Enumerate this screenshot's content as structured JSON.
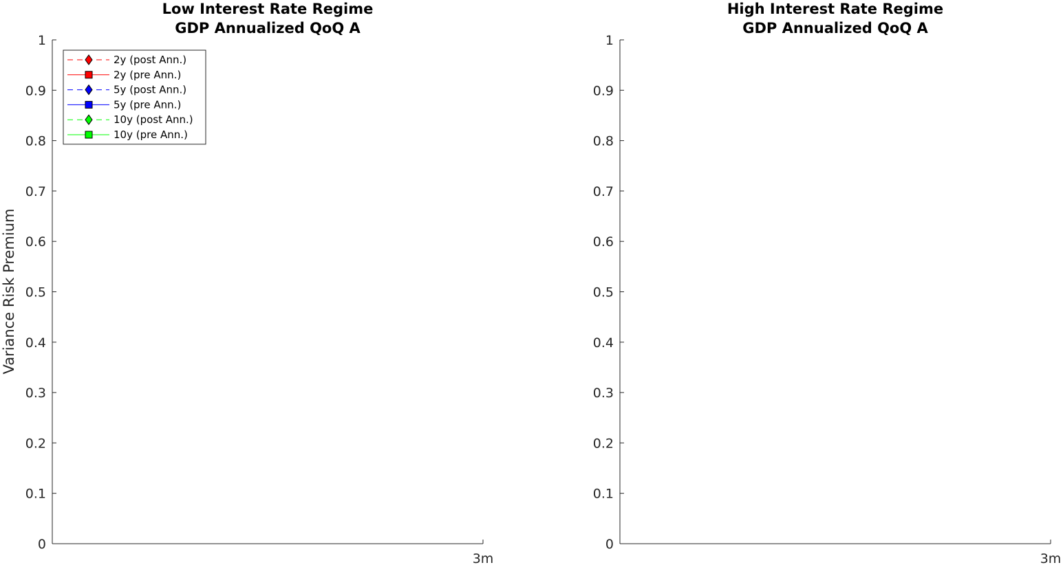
{
  "chart_data": [
    {
      "type": "line",
      "title": [
        "Low Interest Rate Regime",
        "GDP Annualized QoQ A"
      ],
      "xlabel": "",
      "ylabel": "Variance Risk Premium",
      "ylim": [
        0,
        1
      ],
      "yticks": [
        "0",
        "0.1",
        "0.2",
        "0.3",
        "0.4",
        "0.5",
        "0.6",
        "0.7",
        "0.8",
        "0.9",
        "1"
      ],
      "xticks": [
        "3m"
      ],
      "grid": false,
      "legend_position": "top-left",
      "series": [
        {
          "name": "2y (post Ann.)",
          "color": "#ff0000",
          "line": "dashed",
          "marker": "diamond",
          "values": []
        },
        {
          "name": "2y (pre Ann.)",
          "color": "#ff0000",
          "line": "solid",
          "marker": "square",
          "values": []
        },
        {
          "name": "5y (post Ann.)",
          "color": "#0000ff",
          "line": "dashed",
          "marker": "diamond",
          "values": []
        },
        {
          "name": "5y (pre Ann.)",
          "color": "#0000ff",
          "line": "solid",
          "marker": "square",
          "values": []
        },
        {
          "name": "10y (post Ann.)",
          "color": "#00ff00",
          "line": "dashed",
          "marker": "diamond",
          "values": []
        },
        {
          "name": "10y (pre Ann.)",
          "color": "#00ff00",
          "line": "solid",
          "marker": "square",
          "values": []
        }
      ]
    },
    {
      "type": "line",
      "title": [
        "High Interest Rate Regime",
        "GDP Annualized QoQ A"
      ],
      "xlabel": "",
      "ylabel": "",
      "ylim": [
        0,
        1
      ],
      "yticks": [
        "0",
        "0.1",
        "0.2",
        "0.3",
        "0.4",
        "0.5",
        "0.6",
        "0.7",
        "0.8",
        "0.9",
        "1"
      ],
      "xticks": [
        "3m"
      ],
      "grid": false,
      "series": []
    }
  ]
}
